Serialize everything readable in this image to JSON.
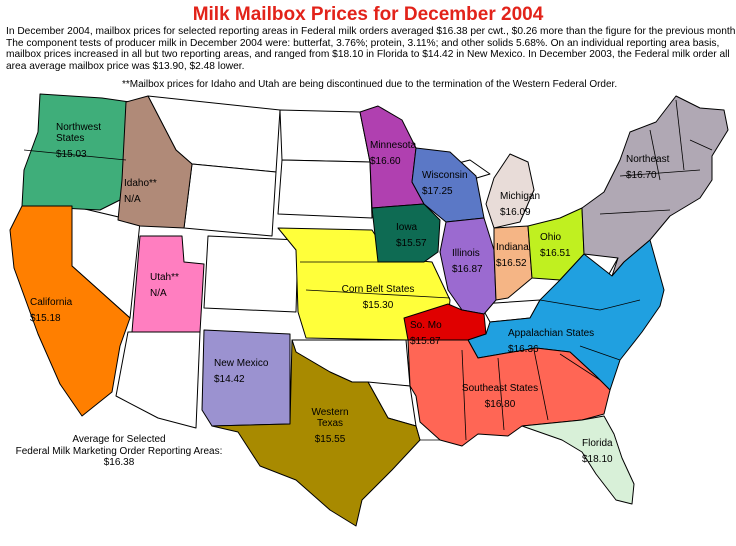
{
  "title": "Milk Mailbox Prices for December 2004",
  "intro_lines": [
    "In December 2004, mailbox prices for selected reporting areas in Federal milk orders averaged $16.38 per cwt., $0.26 more than the figure for the previous month.",
    "The component tests of producer milk in December 2004 were: butterfat, 3.76%; protein, 3.11%; and other solids 5.68%. On an individual reporting area basis,",
    "mailbox prices increased in all but two reporting areas, and ranged from $18.10 in Florida to $14.42 in New Mexico.  In December 2003, the Federal milk order all",
    "area average mailbox price was $13.90, $2.48 lower."
  ],
  "note": "**Mailbox prices for Idaho and Utah are being discontinued due to the termination of the Western Federal Order.",
  "average": {
    "line1": "Average for Selected",
    "line2": "Federal Milk Marketing Order Reporting Areas:",
    "value": "$16.38"
  },
  "regions": [
    {
      "id": "northwest",
      "name_lines": [
        "Northwest",
        "States"
      ],
      "price": "$15.03",
      "color": "#3fae7a"
    },
    {
      "id": "idaho",
      "name_lines": [
        "Idaho**"
      ],
      "price": "N/A",
      "color": "#b08a78"
    },
    {
      "id": "california",
      "name_lines": [
        "California"
      ],
      "price": "$15.18",
      "color": "#ff7f00"
    },
    {
      "id": "utah",
      "name_lines": [
        "Utah**"
      ],
      "price": "N/A",
      "color": "#ff7ec0"
    },
    {
      "id": "new-mexico",
      "name_lines": [
        "New Mexico"
      ],
      "price": "$14.42",
      "color": "#9b92d0"
    },
    {
      "id": "western-texas",
      "name_lines": [
        "Western",
        "Texas"
      ],
      "price": "$15.55",
      "color": "#a88a00"
    },
    {
      "id": "corn-belt",
      "name_lines": [
        "Corn Belt States"
      ],
      "price": "$15.30",
      "color": "#ffff3a"
    },
    {
      "id": "minnesota",
      "name_lines": [
        "Minnesota"
      ],
      "price": "$16.60",
      "color": "#b040b0"
    },
    {
      "id": "iowa",
      "name_lines": [
        "Iowa"
      ],
      "price": "$15.57",
      "color": "#0e6b53"
    },
    {
      "id": "wisconsin",
      "name_lines": [
        "Wisconsin"
      ],
      "price": "$17.25",
      "color": "#5b78c6"
    },
    {
      "id": "illinois",
      "name_lines": [
        "Illinois"
      ],
      "price": "$16.87",
      "color": "#9b6ad0"
    },
    {
      "id": "michigan",
      "name_lines": [
        "Michigan"
      ],
      "price": "$16.09",
      "color": "#e8dcd8"
    },
    {
      "id": "indiana",
      "name_lines": [
        "Indiana"
      ],
      "price": "$16.52",
      "color": "#f5b585"
    },
    {
      "id": "ohio",
      "name_lines": [
        "Ohio"
      ],
      "price": "$16.51",
      "color": "#c0f020"
    },
    {
      "id": "northeast",
      "name_lines": [
        "Northeast"
      ],
      "price": "$16.70",
      "color": "#b0a8b4"
    },
    {
      "id": "so-mo",
      "name_lines": [
        "So. Mo"
      ],
      "price": "$15.87",
      "color": "#e00000"
    },
    {
      "id": "appalachian",
      "name_lines": [
        "Appalachian States"
      ],
      "price": "$16.36",
      "color": "#20a0e0"
    },
    {
      "id": "southeast",
      "name_lines": [
        "Southeast States"
      ],
      "price": "$16.80",
      "color": "#ff6655"
    },
    {
      "id": "florida",
      "name_lines": [
        "Florida"
      ],
      "price": "$18.10",
      "color": "#d8f0d8"
    }
  ]
}
